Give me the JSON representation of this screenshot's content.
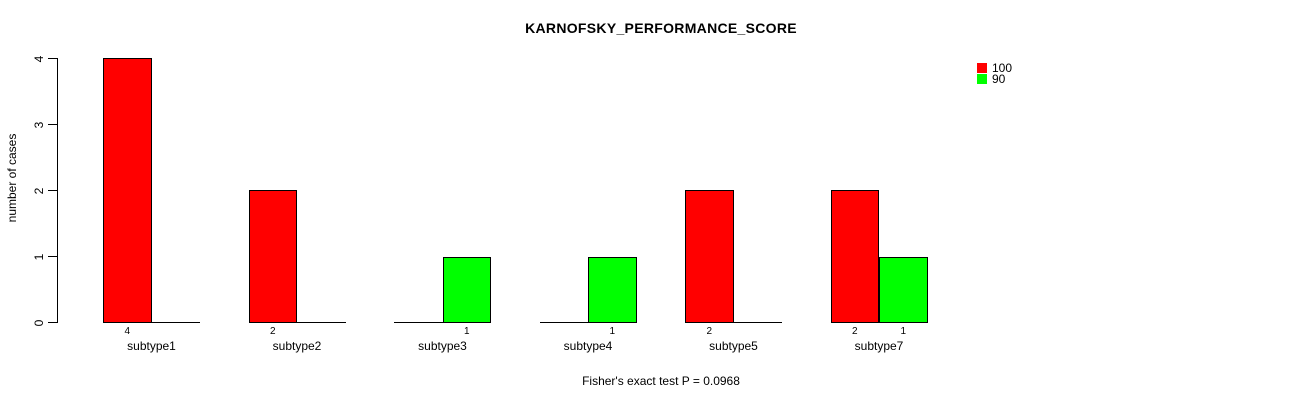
{
  "title": "KARNOFSKY_PERFORMANCE_SCORE",
  "y_axis": {
    "label": "number of cases"
  },
  "footer": "Fisher's exact test P = 0.0968",
  "legend": {
    "items": [
      {
        "label": "100",
        "color": "#FF0000"
      },
      {
        "label": "90",
        "color": "#00FF00"
      }
    ]
  },
  "chart_data": {
    "type": "bar",
    "title": "KARNOFSKY_PERFORMANCE_SCORE",
    "categories": [
      "subtype1",
      "subtype2",
      "subtype3",
      "subtype4",
      "subtype5",
      "subtype7"
    ],
    "series": [
      {
        "name": "100",
        "color": "#FF0000",
        "values": [
          4,
          2,
          0,
          0,
          2,
          2
        ]
      },
      {
        "name": "90",
        "color": "#00FF00",
        "values": [
          0,
          0,
          1,
          1,
          0,
          1
        ]
      }
    ],
    "bar_count_labels": true,
    "xlabel": "",
    "ylabel": "number of cases",
    "ylim": [
      0,
      4
    ],
    "y_ticks": [
      0,
      1,
      2,
      3,
      4
    ],
    "grid": false,
    "legend_position": "top-right",
    "annotation": "Fisher's exact test P = 0.0968"
  }
}
